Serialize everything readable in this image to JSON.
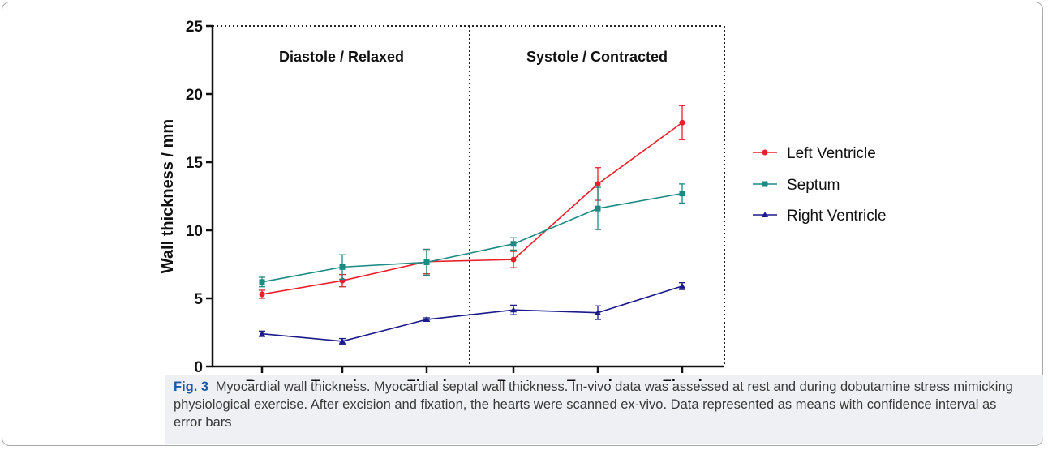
{
  "figure": {
    "caption_label": "Fig. 3",
    "caption_text": "Myocardial wall thickness. Myocardial septal wall thickness. In-vivo data was assessed at rest and during dobutamine stress mimicking physiological exercise. After excision and fixation, the hearts were scanned ex-vivo. Data represented as means with confidence interval as error bars"
  },
  "chart_data": {
    "type": "line",
    "ylabel": "Wall thickness / mm",
    "xlabel": "",
    "ylim": [
      0,
      25
    ],
    "yticks": [
      0,
      5,
      10,
      15,
      20,
      25
    ],
    "categories": [
      "Rest",
      "Exercise",
      "Fixed",
      "Rest",
      "Exercise",
      "Fixed"
    ],
    "regions": [
      {
        "label": "Diastole / Relaxed",
        "categories": [
          0,
          1,
          2
        ]
      },
      {
        "label": "Systole / Contracted",
        "categories": [
          3,
          4,
          5
        ]
      }
    ],
    "legend_position": "right",
    "grid": false,
    "series": [
      {
        "name": "Left Ventricle",
        "color": "#e8202a",
        "marker": "circle",
        "values": [
          5.3,
          6.3,
          7.7,
          7.85,
          13.4,
          17.9
        ],
        "error": [
          0.3,
          0.45,
          0.9,
          0.6,
          1.2,
          1.25
        ]
      },
      {
        "name": "Septum",
        "color": "#1b8a84",
        "marker": "square",
        "values": [
          6.2,
          7.3,
          7.65,
          9.0,
          11.6,
          12.7
        ],
        "error": [
          0.35,
          0.9,
          0.95,
          0.45,
          1.55,
          0.7
        ]
      },
      {
        "name": "Right Ventricle",
        "color": "#1a1a8c",
        "marker": "triangle",
        "values": [
          2.4,
          1.85,
          3.45,
          4.15,
          3.95,
          5.9
        ],
        "error": [
          0.2,
          0.2,
          0.12,
          0.35,
          0.5,
          0.25
        ]
      }
    ]
  }
}
